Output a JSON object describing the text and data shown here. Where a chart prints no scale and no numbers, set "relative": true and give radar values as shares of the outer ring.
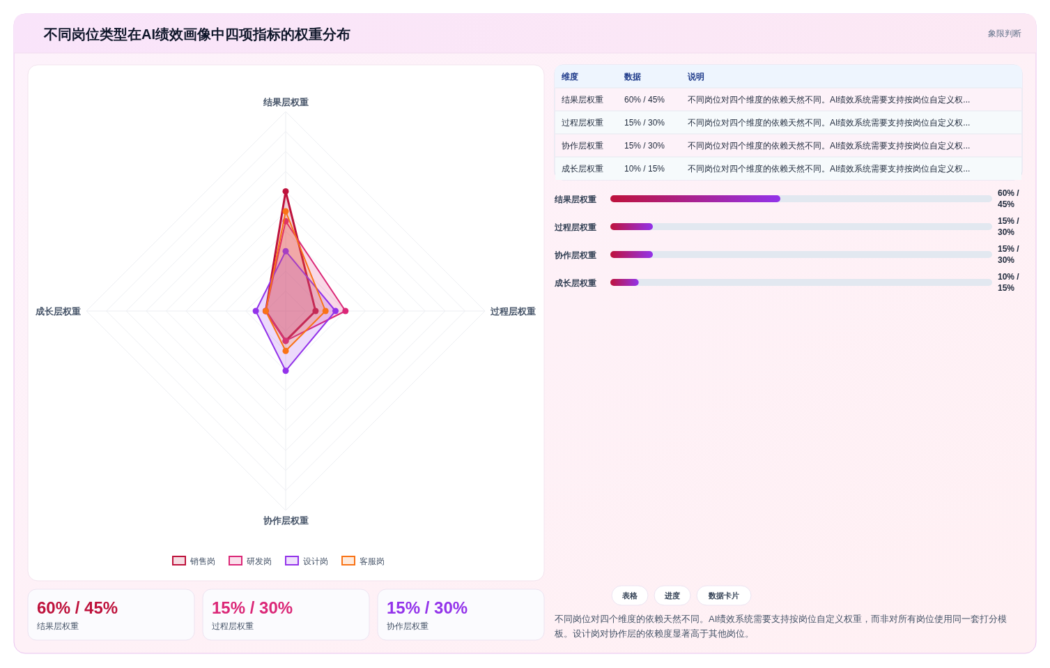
{
  "chart_data": [
    {
      "type": "radar",
      "title": "不同岗位类型在AI绩效画像中四项指标的权重分布",
      "annotations": [
        "象限判断"
      ],
      "categories": [
        "结果层权重",
        "过程层权重",
        "协作层权重",
        "成长层权重"
      ],
      "relative": true,
      "grid": true,
      "legend": "bottom",
      "marker": "circle",
      "series": [
        {
          "name": "销售岗",
          "color": "#be123c",
          "values": [
            0.6,
            0.15,
            0.15,
            0.1
          ]
        },
        {
          "name": "研发岗",
          "color": "#db2777",
          "values": [
            0.45,
            0.3,
            0.15,
            0.1
          ]
        },
        {
          "name": "设计岗",
          "color": "#9333ea",
          "values": [
            0.3,
            0.25,
            0.3,
            0.15
          ]
        },
        {
          "name": "客服岗",
          "color": "#f97316",
          "values": [
            0.5,
            0.2,
            0.2,
            0.1
          ]
        }
      ]
    },
    {
      "type": "bar",
      "orientation": "horizontal",
      "categories": [
        "结果层权重",
        "过程层权重",
        "协作层权重",
        "成长层权重"
      ],
      "values": [
        60,
        15,
        15,
        10
      ],
      "color": "#be123c",
      "value_labels": [
        "60% / 45%",
        "15% / 30%",
        "15% / 30%",
        "10% / 15%"
      ]
    },
    {
      "type": "other",
      "annotations": [
        "维度",
        "数据",
        "说明",
        "结果层权重",
        "60% / 45%",
        "不同岗位对四个维度的依赖天然不同。AI绩效系统需要支持按岗位自定义权...",
        "过程层权重",
        "15% / 30%",
        "不同岗位对四个维度的依赖天然不同。AI绩效系统需要支持按岗位自定义权...",
        "协作层权重",
        "15% / 30%",
        "不同岗位对四个维度的依赖天然不同。AI绩效系统需要支持按岗位自定义权...",
        "成长层权重",
        "10% / 15%",
        "不同岗位对四个维度的依赖天然不同。AI绩效系统需要支持按岗位自定义权..."
      ]
    },
    {
      "type": "other",
      "annotations": [
        "60% / 45%",
        "结果层权重",
        "15% / 30%",
        "过程层权重",
        "15% / 30%",
        "协作层权重"
      ],
      "colors": [
        "#be123c",
        "#db2777",
        "#9333ea"
      ]
    },
    {
      "type": "other",
      "categories": [
        "表格",
        "进度",
        "数据卡片"
      ],
      "annotations": [
        "不同岗位对四个维度的依赖天然不同。AI绩效系统需要支持按岗位自定义权重，而非对所有岗位使用同一套打分模板。设计岗对协作层的依赖度显著高于其他岗位。"
      ]
    }
  ]
}
